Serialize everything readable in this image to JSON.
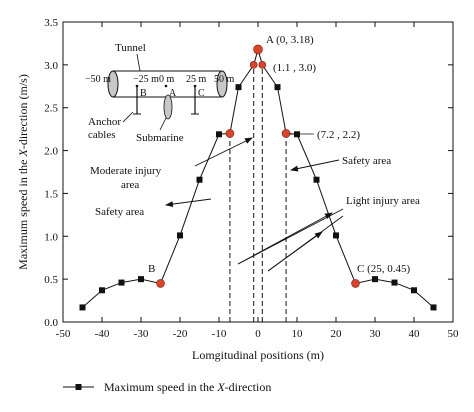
{
  "chart_data": {
    "type": "line",
    "title": "",
    "xlabel": "Lomgitudinal positions (m)",
    "ylabel_parts": [
      "Maximum speed in the ",
      "X",
      "-direction (m/s)"
    ],
    "xlim": [
      -50,
      50
    ],
    "ylim": [
      0,
      3.5
    ],
    "xticks": [
      -50,
      -40,
      -30,
      -20,
      -10,
      0,
      10,
      20,
      30,
      40,
      50
    ],
    "yticks": [
      0.0,
      0.5,
      1.0,
      1.5,
      2.0,
      2.5,
      3.0,
      3.5
    ],
    "ytick_labels": [
      "0.0",
      "0.5",
      "1.0",
      "1.5",
      "2.0",
      "2.5",
      "3.0",
      "3.5"
    ],
    "grid": false,
    "legend_position": "bottom",
    "series": [
      {
        "legend_parts": [
          "Maximum speed in the ",
          "X",
          "-direction"
        ],
        "color": "#111111",
        "marker": "square",
        "x": [
          -45,
          -40,
          -35,
          -30,
          -25,
          -20,
          -15,
          -10,
          -7.2,
          -5,
          -1.1,
          0,
          1.1,
          5,
          7.2,
          10,
          15,
          20,
          25,
          30,
          35,
          40,
          45
        ],
        "y": [
          0.17,
          0.37,
          0.46,
          0.5,
          0.45,
          1.01,
          1.66,
          2.19,
          2.2,
          2.74,
          3.0,
          3.18,
          3.0,
          2.74,
          2.2,
          2.19,
          1.66,
          1.01,
          0.45,
          0.5,
          0.46,
          0.37,
          0.17
        ]
      }
    ],
    "highlight_points": [
      {
        "x": -25,
        "y": 0.45,
        "color": "#d9442b"
      },
      {
        "x": -7.2,
        "y": 2.2,
        "color": "#d9442b"
      },
      {
        "x": -1.1,
        "y": 3.0,
        "color": "#d9442b"
      },
      {
        "x": 0,
        "y": 3.18,
        "color": "#d9442b"
      },
      {
        "x": 1.1,
        "y": 3.0,
        "color": "#d9442b"
      },
      {
        "x": 7.2,
        "y": 2.2,
        "color": "#d9442b"
      },
      {
        "x": 25,
        "y": 0.45,
        "color": "#d9442b"
      }
    ],
    "dashed_lines_x": [
      -7.2,
      -1.1,
      1.1,
      7.2
    ],
    "annotations": {
      "point_A": "A (0, 3.18)",
      "point_pair": "(1.1 , 3.0)",
      "point_72": "(7.2 , 2.2)",
      "point_B": "B",
      "point_C": "C (25, 0.45)",
      "tunnel": "Tunnel",
      "moderate_injury_l1": "Moderate injury",
      "moderate_injury_l2": "area",
      "safety_left": "Safety area",
      "safety_right": "Safety area",
      "light_injury": "Light injury area",
      "anchor_l1": "Anchor",
      "anchor_l2": "cables",
      "submarine": "Submarine"
    },
    "inset": {
      "positions": [
        "−50 m",
        "−25 m",
        "0 m",
        "25 m",
        "50 m"
      ],
      "letters": [
        "B",
        "A",
        "C"
      ]
    }
  }
}
